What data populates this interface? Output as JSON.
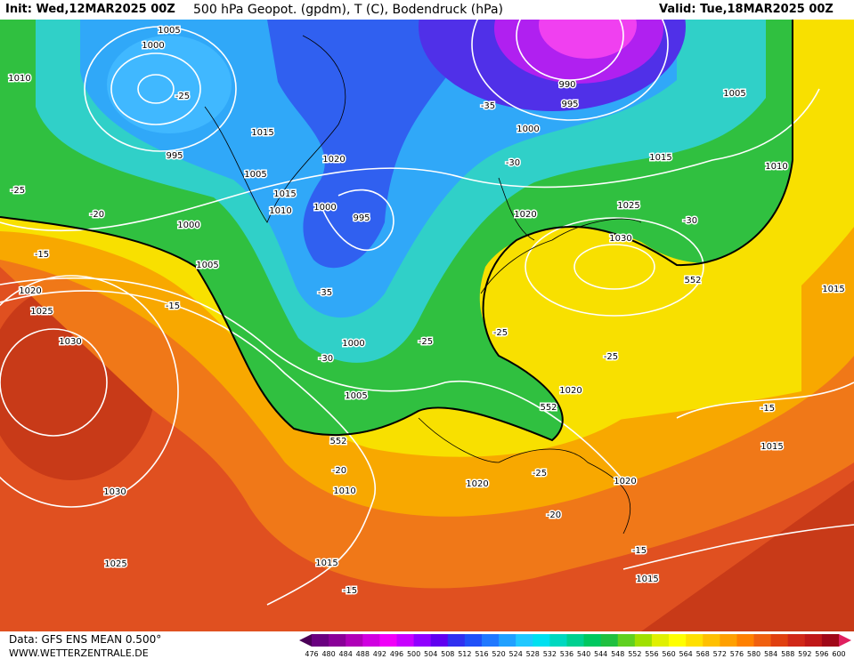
{
  "header": {
    "init": "Init: Wed,12MAR2025 00Z",
    "title": "500 hPa Geopot. (gpdm), T (C), Bodendruck (hPa)",
    "valid": "Valid: Tue,18MAR2025 00Z"
  },
  "footer": {
    "data_source": "Data: GFS ENS MEAN 0.500°",
    "website": "WWW.WETTERZENTRALE.DE"
  },
  "colorbar": {
    "labels": [
      "476",
      "480",
      "484",
      "488",
      "492",
      "496",
      "500",
      "504",
      "508",
      "512",
      "516",
      "520",
      "524",
      "528",
      "532",
      "536",
      "540",
      "544",
      "548",
      "552",
      "556",
      "560",
      "564",
      "568",
      "572",
      "576",
      "580",
      "584",
      "588",
      "592",
      "596",
      "600"
    ]
  },
  "map": {
    "contour_labels": [
      "1005",
      "1000",
      "1010",
      "-25",
      "1015",
      "995",
      "1005",
      "1015",
      "1010",
      "1000",
      "1020",
      "995",
      "-35",
      "990",
      "995",
      "1000",
      "1005",
      "1015",
      "1010",
      "-30",
      "1020",
      "1025",
      "1030",
      "-30",
      "552",
      "1015",
      "-25",
      "-20",
      "1000",
      "-15",
      "1005",
      "1020",
      "1025",
      "-15",
      "1030",
      "-35",
      "1000",
      "-30",
      "-25",
      "-25",
      "-25",
      "1005",
      "1020",
      "552",
      "552",
      "-15",
      "1015",
      "-20",
      "-25",
      "1010",
      "1020",
      "1020",
      "1030",
      "-20",
      "-15",
      "1025",
      "1015",
      "1015",
      "-15"
    ]
  }
}
